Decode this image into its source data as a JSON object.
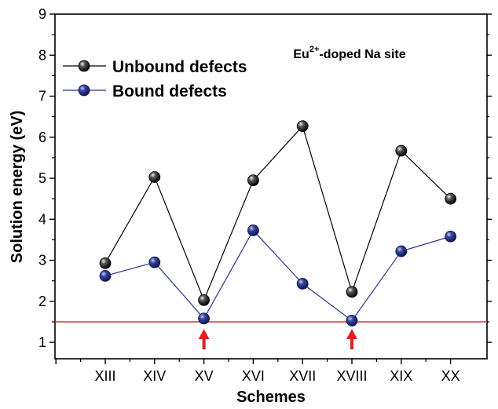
{
  "chart_data": {
    "type": "line",
    "categories": [
      "XIII",
      "XIV",
      "XV",
      "XVI",
      "XVII",
      "XVIII",
      "XIX",
      "XX"
    ],
    "series": [
      {
        "name": "Unbound defects",
        "values": [
          2.93,
          5.03,
          2.03,
          4.95,
          6.27,
          2.23,
          5.67,
          4.5
        ],
        "color": "#000000"
      },
      {
        "name": "Bound defects",
        "values": [
          2.62,
          2.95,
          1.58,
          3.73,
          2.43,
          1.53,
          3.22,
          3.58
        ],
        "color": "#2b3585"
      }
    ],
    "xlabel": "Schemes",
    "ylabel": "Solution energy (eV)",
    "ylim": [
      0.6,
      9
    ],
    "yticks": [
      1,
      2,
      3,
      4,
      5,
      6,
      7,
      8,
      9
    ],
    "grid": false,
    "legend_position": "top-left",
    "reference_line": {
      "y": 1.5,
      "color": "#e03030"
    },
    "arrow_markers": {
      "categories": [
        "XV",
        "XVIII"
      ],
      "color": "#e02020"
    },
    "annotation": {
      "base": "Eu",
      "superscript": "2+",
      "rest": "-doped Na site"
    }
  }
}
